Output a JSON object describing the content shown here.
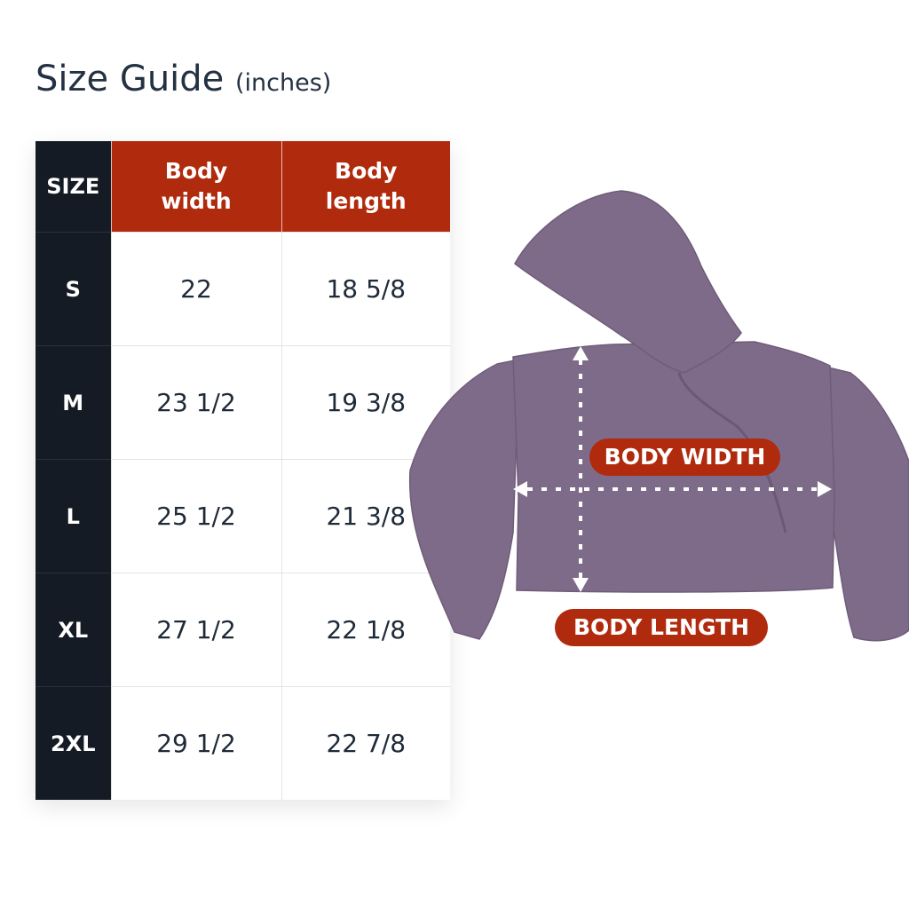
{
  "title": {
    "main": "Size Guide",
    "unit": "(inches)"
  },
  "table": {
    "headers": {
      "size": "SIZE",
      "width_line1": "Body",
      "width_line2": "width",
      "length_line1": "Body",
      "length_line2": "length"
    },
    "rows": [
      {
        "size": "S",
        "width": "22",
        "length": "18 5/8"
      },
      {
        "size": "M",
        "width": "23 1/2",
        "length": "19 3/8"
      },
      {
        "size": "L",
        "width": "25 1/2",
        "length": "21 3/8"
      },
      {
        "size": "XL",
        "width": "27 1/2",
        "length": "22 1/8"
      },
      {
        "size": "2XL",
        "width": "29 1/2",
        "length": "22 7/8"
      }
    ]
  },
  "diagram": {
    "width_label": "BODY WIDTH",
    "length_label": "BODY LENGTH"
  },
  "colors": {
    "accent": "#b02a0e",
    "size_column": "#151b25",
    "garment": "#7e6b89"
  }
}
